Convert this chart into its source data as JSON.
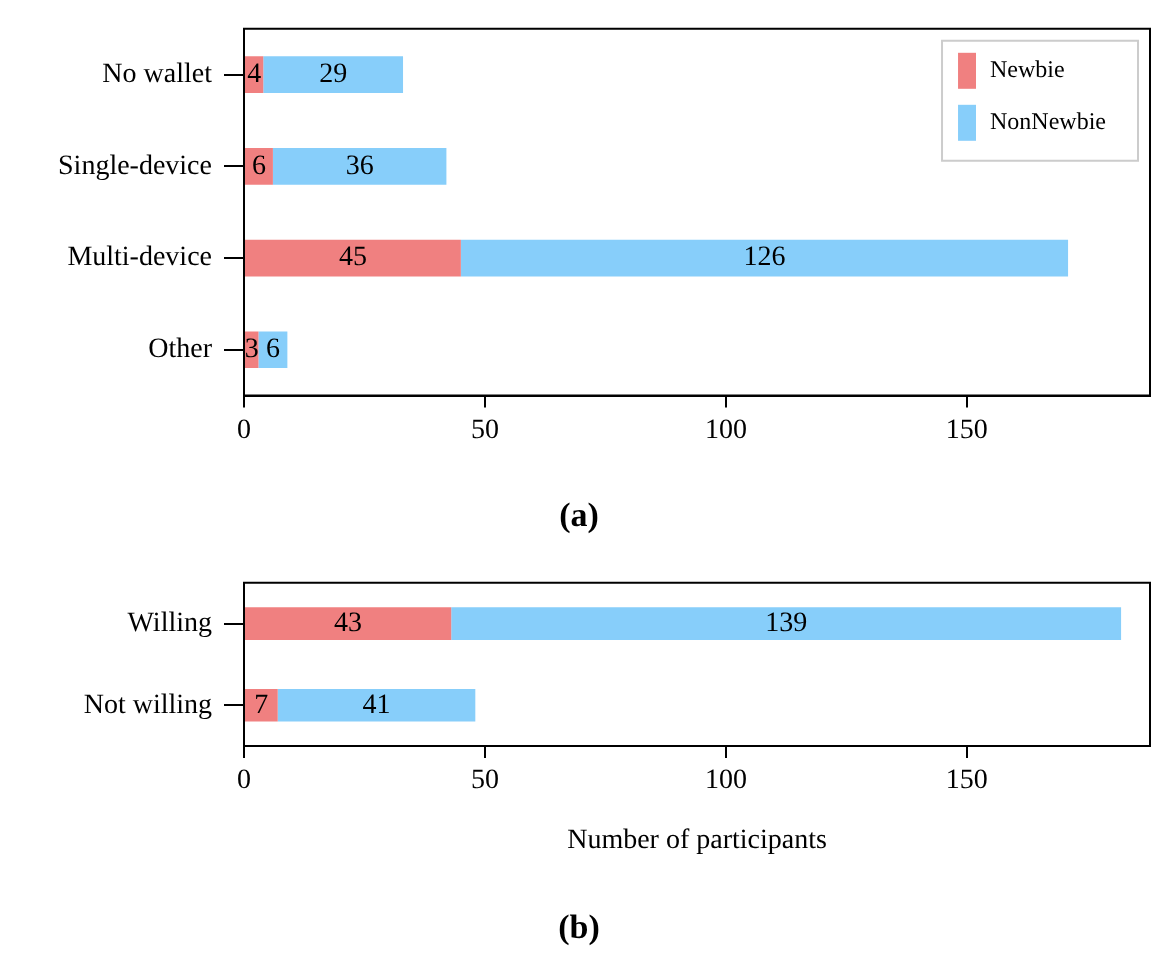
{
  "chart_data": [
    {
      "type": "bar",
      "title": "(a)",
      "orientation": "horizontal",
      "stacked": true,
      "categories": [
        "No wallet",
        "Single-device",
        "Multi-device",
        "Other"
      ],
      "series": [
        {
          "name": "Newbie",
          "color": "#f08080",
          "values": [
            4,
            6,
            45,
            3
          ]
        },
        {
          "name": "NonNewbie",
          "color": "#87cefa",
          "values": [
            29,
            36,
            126,
            6
          ]
        }
      ],
      "xlim": [
        0,
        188
      ],
      "xticks": [
        0,
        50,
        100,
        150
      ],
      "data_labels": true,
      "legend": "top right",
      "grid": false
    },
    {
      "type": "bar",
      "title": "(b)",
      "xlabel": "Number of participants",
      "orientation": "horizontal",
      "stacked": true,
      "categories": [
        "Willing",
        "Not willing"
      ],
      "series": [
        {
          "color": "#f08080",
          "values": [
            43,
            7
          ]
        },
        {
          "color": "#87cefa",
          "values": [
            139,
            41
          ]
        }
      ],
      "xlim": [
        0,
        188
      ],
      "xticks": [
        0,
        50,
        100,
        150
      ],
      "data_labels": true,
      "legend": false,
      "grid": false
    }
  ]
}
